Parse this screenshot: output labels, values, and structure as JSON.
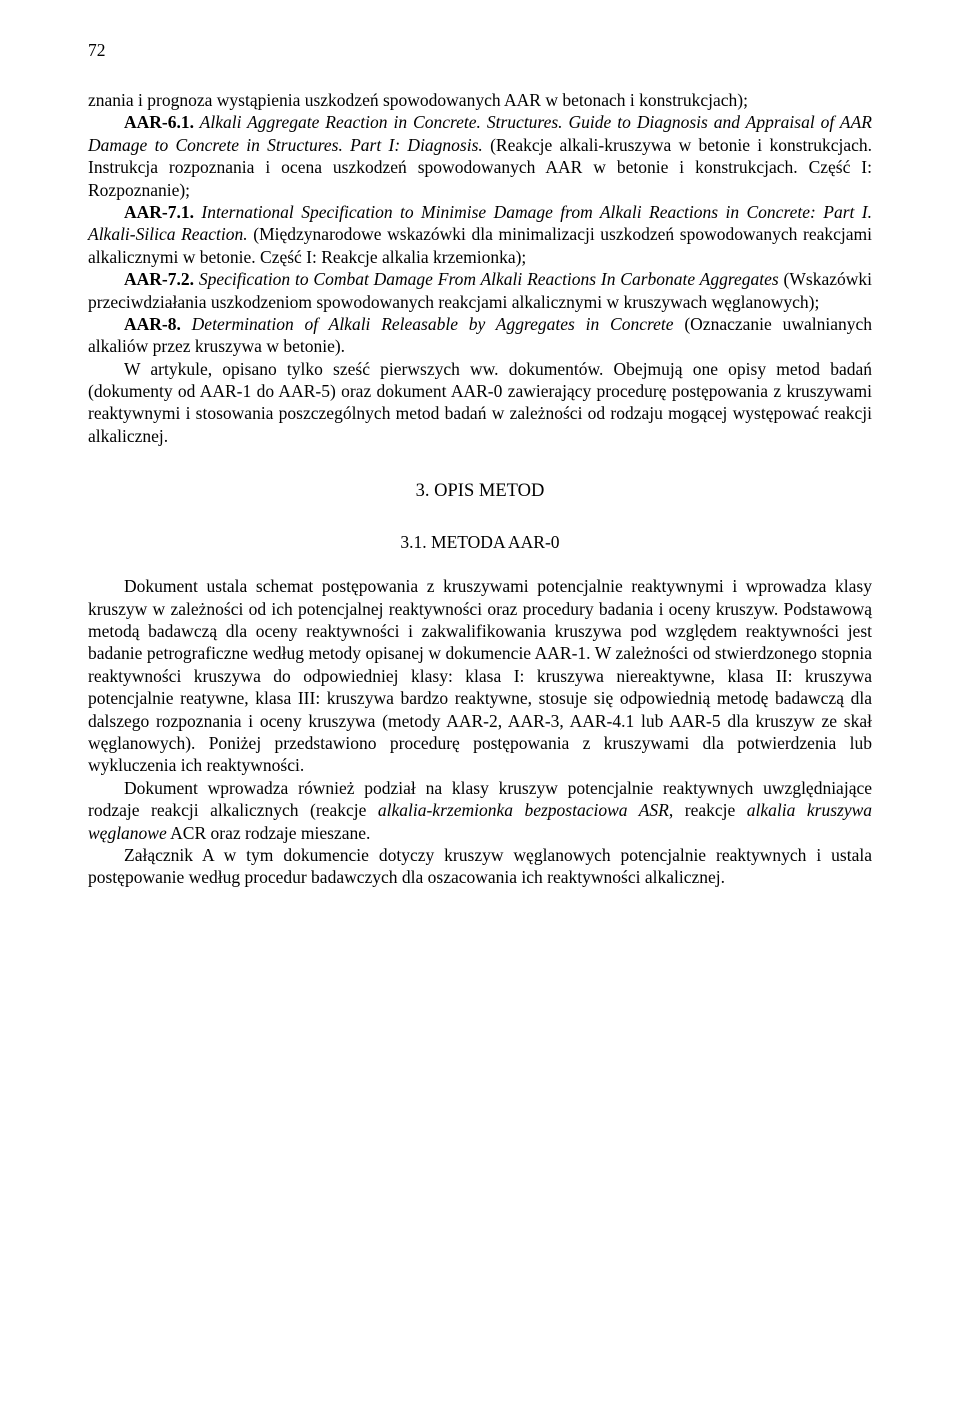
{
  "page": {
    "number": "72"
  },
  "para1": {
    "frag1": "znania i prognoza wystąpienia uszkodzeń spowodowanych AAR w betonach i konstrukcjach);"
  },
  "para2": {
    "label": "AAR-6.1.",
    "frag1": " Alkali Aggregate Reaction in Concrete. Structures. Guide to Diagnosis and Appraisal of AAR Damage to Concrete in Structures. Part I: Diagnosis.",
    "frag2": " (Reakcje alkali-kruszywa w betonie i konstrukcjach. Instrukcja rozpoznania i ocena uszkodzeń spowodowanych AAR w betonie i konstrukcjach. Część I: Rozpoznanie);"
  },
  "para3": {
    "label": "AAR-7.1.",
    "frag1": " International Specification to Minimise Damage from Alkali Reactions in Concrete: Part I. Alkali-Silica Reaction.",
    "frag2": " (Międzynarodowe wskazówki dla minimalizacji uszkodzeń spowodowanych reakcjami alkalicznymi w betonie. Część I: Reakcje alkalia krzemionka);"
  },
  "para4": {
    "label": "AAR-7.2.",
    "frag1": " Specification to Combat Damage From Alkali Reactions In Carbonate Aggregates",
    "frag2": " (Wskazówki przeciwdziałania uszkodzeniom spowodowanych reakcjami alkalicznymi w kruszywach węglanowych);"
  },
  "para5": {
    "label": "AAR-8.",
    "frag1": " Determination of Alkali Releasable by Aggregates in Concrete",
    "frag2": " (Oznaczanie uwalnianych alkaliów przez kruszywa w betonie)."
  },
  "para6": {
    "text": "W artykule, opisano tylko sześć pierwszych ww. dokumentów. Obejmują one opisy metod badań (dokumenty od AAR-1 do AAR-5) oraz dokument AAR-0 zawierający procedurę postępowania z kruszywami reaktywnymi i stosowania poszczególnych metod badań w zależności od rodzaju mogącej występować reakcji alkalicznej."
  },
  "heading_main": "3. OPIS METOD",
  "heading_sub": "3.1. METODA AAR-0",
  "para7": {
    "text": "Dokument ustala schemat postępowania z kruszywami potencjalnie reaktywnymi i wprowadza klasy kruszyw w zależności od ich potencjalnej reaktywności oraz procedury badania i oceny kruszyw. Podstawową metodą badawczą dla oceny reaktywności i zakwalifikowania kruszywa pod względem reaktywności jest badanie petrograficzne według metody opisanej w dokumencie AAR-1. W zależności od stwierdzonego stopnia reaktywności kruszywa do odpowiedniej klasy: klasa I: kruszywa niereaktywne, klasa II: kruszywa potencjalnie reatywne, klasa III: kruszywa bardzo reaktywne, stosuje się odpowiednią metodę badawczą dla dalszego rozpoznania i oceny kruszywa (metody AAR-2, AAR-3, AAR-4.1 lub AAR-5 dla kruszyw ze skał węglanowych). Poniżej przedstawiono procedurę postępowania z kruszywami dla potwierdzenia lub wykluczenia ich reaktywności."
  },
  "para8": {
    "frag1": "Dokument wprowadza również podział na klasy kruszyw potencjalnie reaktywnych uwzględniające rodzaje reakcji alkalicznych (reakcje ",
    "italic1": "alkalia-krzemionka bezpostaciowa ASR",
    "frag2": ", reakcje ",
    "italic2": "alkalia kruszywa węglanowe",
    "frag3": " ACR oraz rodzaje mieszane."
  },
  "para9": {
    "text": "Załącznik A w tym dokumencie dotyczy kruszyw węglanowych potencjalnie reaktywnych i ustala postępowanie według procedur badawczych dla oszacowania ich reaktywności alkalicznej."
  }
}
